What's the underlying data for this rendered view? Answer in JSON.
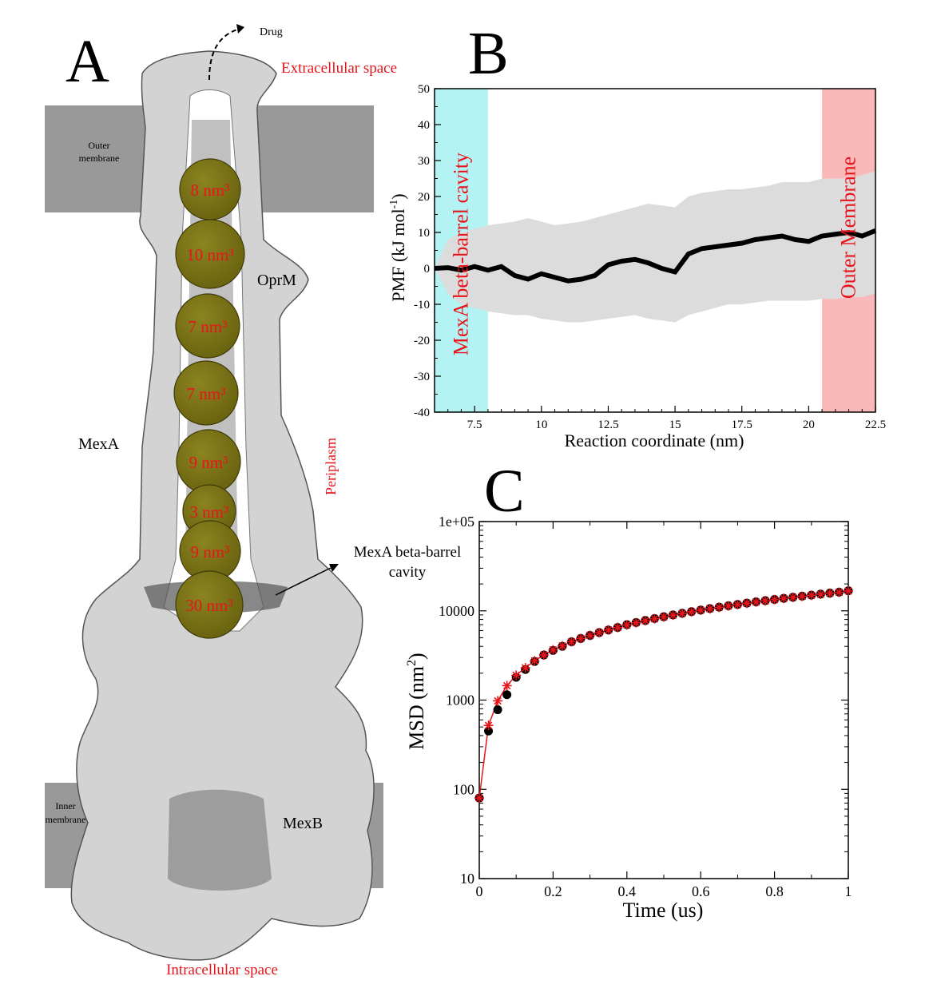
{
  "panel_a": {
    "letter": "A",
    "drug_label": "Drug",
    "extracellular_label": "Extracellular space",
    "outer_membrane_label_1": "Outer",
    "outer_membrane_label_2": "membrane",
    "oprm_label": "OprM",
    "mexa_label": "MexA",
    "periplasm_label": "Periplasm",
    "cavity_label_1": "MexA beta-barrel",
    "cavity_label_2": "cavity",
    "inner_membrane_label_1": "Inner",
    "inner_membrane_label_2": "membrane",
    "mexb_label": "MexB",
    "intracellular_label": "Intracellular space",
    "sphere_labels": [
      "8 nm³",
      "10 nm³",
      "7 nm³",
      "7 nm³",
      "9 nm³",
      "3 nm³",
      "9 nm³",
      "30 nm³"
    ],
    "colors": {
      "membrane": "#999999",
      "protein": "#d3d3d3",
      "sphere": "#6b6410",
      "label_red": "#e8141c"
    }
  },
  "chart_data": [
    {
      "panel": "B",
      "type": "line",
      "letter": "B",
      "xlabel": "Reaction coordinate (nm)",
      "ylabel_main": "PMF (kJ mol",
      "ylabel_sup": "-1",
      "ylabel_end": ")",
      "xlim": [
        6,
        22.5
      ],
      "ylim": [
        -40,
        50
      ],
      "xticks": [
        7.5,
        10,
        12.5,
        15,
        17.5,
        20,
        22.5
      ],
      "xtick_labels": [
        "7.5",
        "10",
        "12.5",
        "15",
        "17.5",
        "20",
        "22.5"
      ],
      "yticks": [
        -40,
        -30,
        -20,
        -10,
        0,
        10,
        20,
        30,
        40,
        50
      ],
      "ytick_labels": [
        "-40",
        "-30",
        "-20",
        "-10",
        "0",
        "10",
        "20",
        "30",
        "40",
        "50"
      ],
      "regions": [
        {
          "label": "MexA beta-barrel cavity",
          "x0": 6,
          "x1": 8,
          "color": "#b3f3f3"
        },
        {
          "label": "Outer Membrane",
          "x0": 20.5,
          "x1": 22.5,
          "color": "#f9b9b9"
        }
      ],
      "series": [
        {
          "x": [
            6.0,
            6.5,
            7.0,
            7.5,
            8.0,
            8.5,
            9.0,
            9.5,
            10.0,
            10.5,
            11.0,
            11.5,
            12.0,
            12.5,
            13.0,
            13.5,
            14.0,
            14.5,
            15.0,
            15.5,
            16.0,
            16.5,
            17.0,
            17.5,
            18.0,
            18.5,
            19.0,
            19.5,
            20.0,
            20.5,
            21.0,
            21.5,
            22.0,
            22.5
          ],
          "y": [
            0,
            0.2,
            -0.5,
            0.5,
            -0.5,
            0.5,
            -2,
            -3,
            -1.5,
            -2.5,
            -3.5,
            -3,
            -2,
            1,
            2,
            2.5,
            1.5,
            0,
            -1,
            4,
            5.5,
            6,
            6.5,
            7,
            8,
            8.5,
            9,
            8,
            7.5,
            9,
            9.5,
            10,
            9,
            10.5
          ],
          "err_upper": [
            0,
            8,
            10,
            11,
            12,
            12.5,
            13,
            14,
            13,
            12,
            12.5,
            13,
            14,
            15,
            16,
            17,
            18,
            17.5,
            17,
            20,
            21,
            21.5,
            22,
            22,
            22.5,
            23,
            24,
            24,
            24,
            25,
            25,
            25,
            26,
            27
          ],
          "err_lower": [
            0,
            -7,
            -10,
            -11,
            -12,
            -12.5,
            -13,
            -13,
            -14,
            -14.5,
            -15,
            -15,
            -14.5,
            -14,
            -13.5,
            -13,
            -14,
            -14.5,
            -15,
            -13,
            -12,
            -11,
            -10,
            -10,
            -9.5,
            -9,
            -9,
            -9,
            -9,
            -8.5,
            -8.5,
            -8,
            -8,
            -7
          ],
          "line_color": "#000000",
          "band_color": "#dcdcdc"
        }
      ]
    },
    {
      "panel": "C",
      "type": "line",
      "letter": "C",
      "xlabel": "Time (us)",
      "ylabel_main": "MSD (nm",
      "ylabel_sup": "2",
      "ylabel_end": ")",
      "xlim": [
        0,
        1
      ],
      "ylim": [
        10,
        100000
      ],
      "yscale": "log",
      "xticks": [
        0,
        0.2,
        0.4,
        0.6,
        0.8,
        1
      ],
      "xtick_labels": [
        "0",
        "0.2",
        "0.4",
        "0.6",
        "0.8",
        "1"
      ],
      "yticks": [
        10,
        100,
        1000,
        10000,
        100000
      ],
      "ytick_labels": [
        "10",
        "100",
        "1000",
        "10000",
        "1e+05"
      ],
      "series": [
        {
          "x": [
            0,
            0.025,
            0.05,
            0.075,
            0.1,
            0.125,
            0.15,
            0.175,
            0.2,
            0.225,
            0.25,
            0.275,
            0.3,
            0.325,
            0.35,
            0.375,
            0.4,
            0.425,
            0.45,
            0.475,
            0.5,
            0.525,
            0.55,
            0.575,
            0.6,
            0.625,
            0.65,
            0.675,
            0.7,
            0.725,
            0.75,
            0.775,
            0.8,
            0.825,
            0.85,
            0.875,
            0.9,
            0.925,
            0.95,
            0.975,
            1.0
          ],
          "y": [
            80,
            450,
            780,
            1150,
            1800,
            2200,
            2700,
            3200,
            3600,
            4000,
            4500,
            4900,
            5300,
            5700,
            6100,
            6500,
            7000,
            7400,
            7800,
            8200,
            8600,
            9000,
            9400,
            9800,
            10200,
            10600,
            11000,
            11400,
            11800,
            12200,
            12600,
            13000,
            13400,
            13800,
            14200,
            14600,
            15000,
            15400,
            15800,
            16200,
            16800
          ],
          "marker": "circle",
          "color": "#000000"
        },
        {
          "x": [
            0,
            0.025,
            0.05,
            0.075,
            0.1,
            0.125,
            0.15,
            0.175,
            0.2,
            0.225,
            0.25,
            0.275,
            0.3,
            0.325,
            0.35,
            0.375,
            0.4,
            0.425,
            0.45,
            0.475,
            0.5,
            0.525,
            0.55,
            0.575,
            0.6,
            0.625,
            0.65,
            0.675,
            0.7,
            0.725,
            0.75,
            0.775,
            0.8,
            0.825,
            0.85,
            0.875,
            0.9,
            0.925,
            0.95,
            0.975,
            1.0
          ],
          "y": [
            80,
            520,
            980,
            1450,
            1900,
            2300,
            2750,
            3200,
            3650,
            4050,
            4500,
            4900,
            5300,
            5700,
            6100,
            6500,
            6950,
            7350,
            7750,
            8150,
            8550,
            8950,
            9350,
            9750,
            10150,
            10550,
            10950,
            11350,
            11750,
            12150,
            12550,
            12950,
            13350,
            13750,
            14150,
            14550,
            14950,
            15350,
            15750,
            16150,
            16700
          ],
          "marker": "star",
          "color": "#e8141c"
        }
      ]
    }
  ]
}
